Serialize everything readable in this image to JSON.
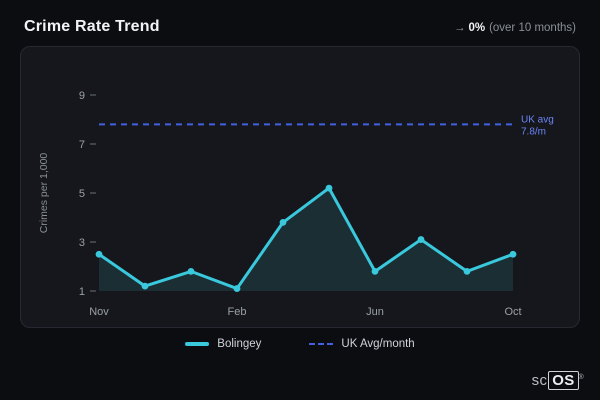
{
  "header": {
    "title": "Crime Rate Trend",
    "trend": {
      "arrow": "→",
      "value": "0%",
      "caption": "(over 10 months)"
    }
  },
  "chart_data": {
    "type": "line",
    "title": "",
    "ylabel": "Crimes per 1,000",
    "ylim": [
      1,
      9
    ],
    "y_ticks": [
      9,
      7,
      5,
      3,
      1
    ],
    "n_points": 10,
    "x_tick_labels": [
      "Nov",
      "Feb",
      "Jun",
      "Oct"
    ],
    "x_tick_indices": [
      0,
      3,
      6,
      9
    ],
    "grid": false,
    "legend_position": "bottom",
    "series": [
      {
        "name": "Bolingey",
        "values": [
          2.5,
          1.2,
          1.8,
          1.1,
          3.8,
          5.2,
          1.8,
          3.1,
          1.8,
          2.5
        ],
        "color": "#3ac8dc",
        "area_color": "rgba(58,200,220,0.13)"
      }
    ],
    "reference_line": {
      "name": "UK Avg/month",
      "value": 7.8,
      "color": "#4161e1",
      "label_line1": "UK avg",
      "label_line2": "7.8/m",
      "label_color": "#6b84f5"
    },
    "legend": [
      {
        "label": "Bolingey",
        "style": "solid",
        "color": "#3ac8dc"
      },
      {
        "label": "UK Avg/month",
        "style": "dashed",
        "color": "#4161e1"
      }
    ]
  },
  "footer": {
    "logo_prefix": "sc",
    "logo_box": "OS",
    "registered": "®"
  }
}
